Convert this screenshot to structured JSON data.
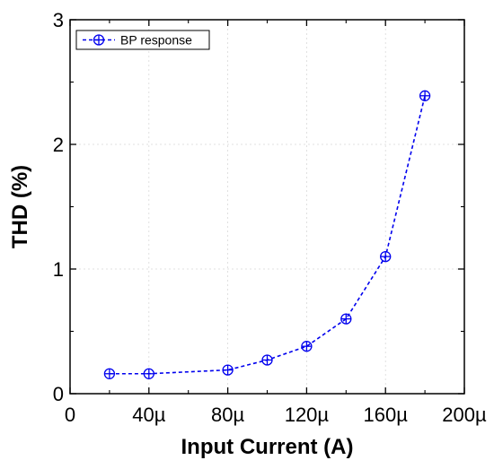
{
  "chart_data": {
    "type": "line",
    "title": "",
    "xlabel": "Input Current (A)",
    "ylabel": "THD (%)",
    "xlim": [
      0,
      0.0002
    ],
    "ylim": [
      0,
      3
    ],
    "x_ticks": [
      0,
      4e-05,
      8e-05,
      0.00012,
      0.00016,
      0.0002
    ],
    "x_tick_labels": [
      "0",
      "40µ",
      "80µ",
      "120µ",
      "160µ",
      "200µ"
    ],
    "y_ticks": [
      0,
      1,
      2,
      3
    ],
    "y_tick_labels": [
      "0",
      "1",
      "2",
      "3"
    ],
    "grid": true,
    "legend_position": "top-left",
    "series": [
      {
        "name": "BP response",
        "color": "#0000ee",
        "line_style": "dashed",
        "marker": "circle-plus",
        "x": [
          2e-05,
          4e-05,
          8e-05,
          0.0001,
          0.00012,
          0.00014,
          0.00016,
          0.00018
        ],
        "y": [
          0.16,
          0.16,
          0.19,
          0.27,
          0.38,
          0.6,
          1.1,
          2.39
        ]
      }
    ]
  }
}
